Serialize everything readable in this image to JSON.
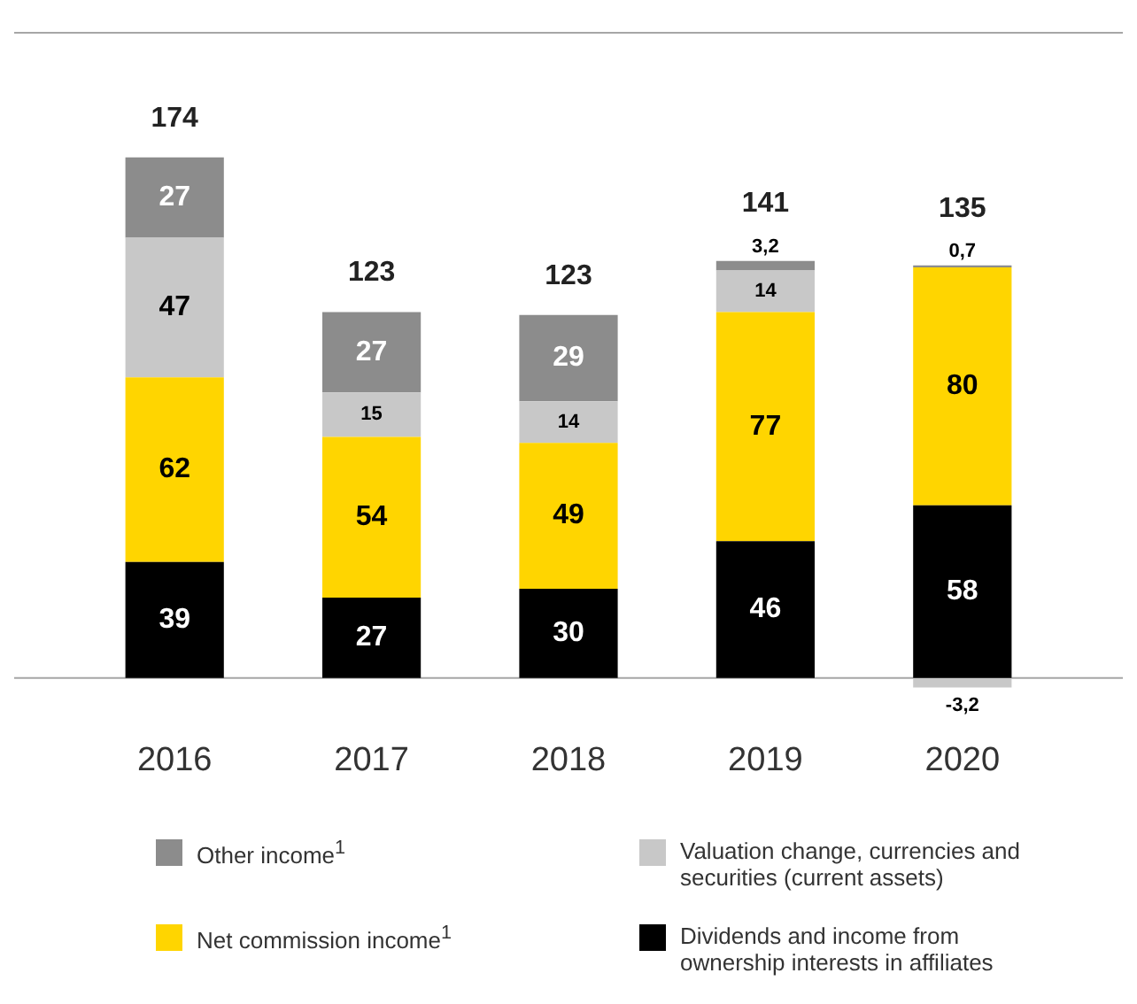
{
  "chart_data": {
    "type": "bar",
    "stacked": true,
    "categories": [
      "2016",
      "2017",
      "2018",
      "2019",
      "2020"
    ],
    "series": [
      {
        "name": "Dividends and income from ownership interests in affiliates",
        "color": "#000000",
        "values": [
          39,
          27,
          30,
          46,
          58
        ],
        "value_labels": [
          "39",
          "27",
          "30",
          "46",
          "58"
        ]
      },
      {
        "name": "Net commission income$^{1}$",
        "color": "#ffd500",
        "values": [
          62,
          54,
          49,
          77,
          80
        ],
        "value_labels": [
          "62",
          "54",
          "49",
          "77",
          "80"
        ]
      },
      {
        "name": "Valuation change, currencies and securities (current assets)",
        "color": "#c8c8c8",
        "values": [
          47,
          15,
          14,
          14,
          -3.2
        ],
        "value_labels": [
          "47",
          "15",
          "14",
          "14",
          "-3,2"
        ]
      },
      {
        "name": "Other income$^{1}$",
        "color": "#8c8c8c",
        "values": [
          27,
          27,
          29,
          3.2,
          0.7
        ],
        "value_labels": [
          "27",
          "27",
          "29",
          "3,2",
          "0,7"
        ]
      }
    ],
    "totals": [
      "174",
      "123",
      "123",
      "141",
      "135"
    ],
    "legend": "bottom",
    "grid": false
  }
}
